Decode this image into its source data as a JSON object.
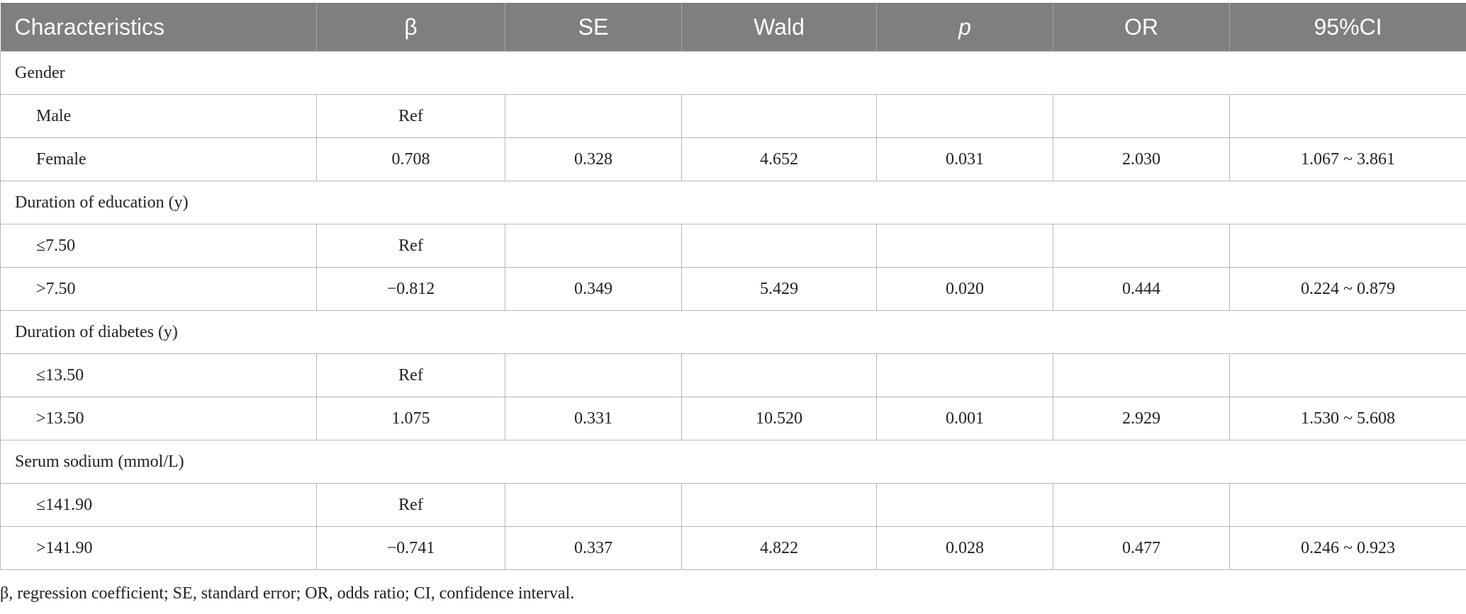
{
  "table": {
    "header": [
      "Characteristics",
      "β",
      "SE",
      "Wald",
      "p",
      "OR",
      "95%CI"
    ],
    "rows": [
      [
        "Gender"
      ],
      [
        "Male",
        "Ref"
      ],
      [
        "Female",
        "0.708",
        "0.328",
        "4.652",
        "0.031",
        "2.030",
        "1.067 ~ 3.861"
      ],
      [
        "Duration of education (y)"
      ],
      [
        "≤7.50",
        "Ref"
      ],
      [
        ">7.50",
        "−0.812",
        "0.349",
        "5.429",
        "0.020",
        "0.444",
        "0.224 ~ 0.879"
      ],
      [
        "Duration of diabetes (y)"
      ],
      [
        "≤13.50",
        "Ref"
      ],
      [
        ">13.50",
        "1.075",
        "0.331",
        "10.520",
        "0.001",
        "2.929",
        "1.530 ~ 5.608"
      ],
      [
        "Serum sodium (mmol/L)"
      ],
      [
        "≤141.90",
        "Ref"
      ],
      [
        ">141.90",
        "−0.741",
        "0.337",
        "4.822",
        "0.028",
        "0.477",
        "0.246 ~ 0.923"
      ]
    ]
  },
  "footnote": "β, regression coefficient; SE, standard error; OR, odds ratio; CI, confidence interval."
}
